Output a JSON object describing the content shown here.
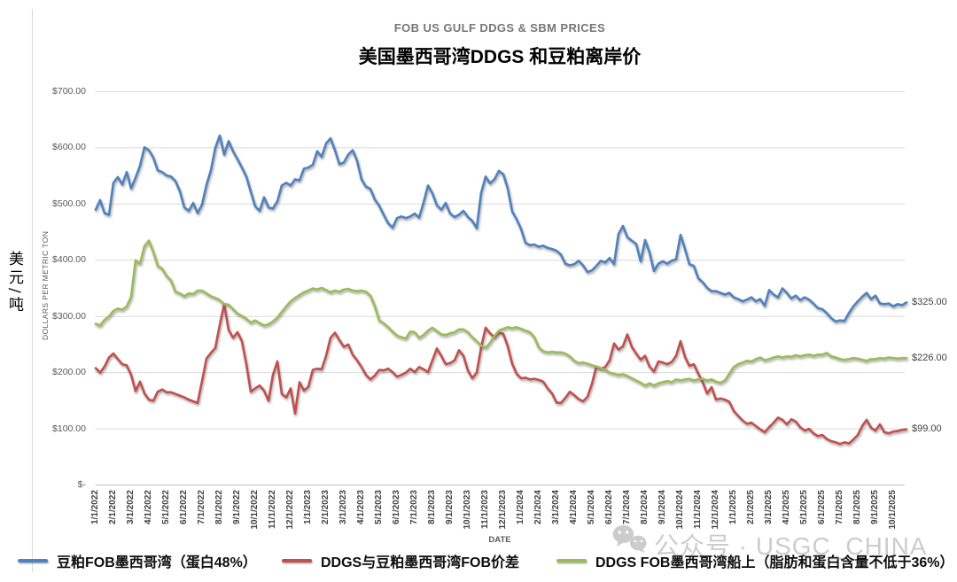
{
  "chart_data": {
    "type": "line",
    "title": "FOB US GULF DDGS & SBM PRICES",
    "subtitle": "美国墨西哥湾DDGS 和豆粕离岸价",
    "ylabel": "DOLLARS PER METRIC TON",
    "xlabel": "DATE",
    "unit_label": "美元/吨",
    "ylim": [
      0,
      700
    ],
    "ytick_labels": [
      "$700.00",
      "$600.00",
      "$500.00",
      "$400.00",
      "$300.00",
      "$200.00",
      "$100.00",
      "$-"
    ],
    "grid": true,
    "legend_position": "bottom",
    "x_tick_labels": [
      "1/1/2022",
      "2/1/2022",
      "3/1/2022",
      "4/1/2022",
      "5/1/2022",
      "6/1/2022",
      "7/1/2022",
      "8/1/2022",
      "9/1/2022",
      "10/1/2022",
      "11/1/2022",
      "12/1/2022",
      "1/1/2023",
      "2/1/2023",
      "3/1/2023",
      "4/1/2023",
      "5/1/2023",
      "6/1/2023",
      "7/1/2023",
      "8/1/2023",
      "9/1/2023",
      "10/1/2023",
      "11/1/2023",
      "12/1/2023",
      "1/1/2024",
      "2/1/2024",
      "3/1/2024",
      "4/1/2024",
      "5/1/2024",
      "6/1/2024",
      "7/1/2024",
      "8/1/2024",
      "9/1/2024",
      "10/1/2024",
      "11/1/2024",
      "12/1/2024",
      "1/1/2025",
      "2/1/2025",
      "3/1/2025",
      "4/1/2025",
      "5/1/2025",
      "6/1/2025",
      "7/1/2025",
      "8/1/2025",
      "9/1/2025",
      "10/1/2025"
    ],
    "points_per_month": 4,
    "series": [
      {
        "name": "豆粕FOB墨西哥湾（蛋白48%）",
        "color": "#4F81BD",
        "end_label": "$325.00",
        "values": [
          490,
          507,
          484,
          481,
          538,
          548,
          535,
          557,
          528,
          547,
          568,
          601,
          596,
          583,
          560,
          557,
          551,
          549,
          541,
          523,
          494,
          488,
          502,
          484,
          499,
          534,
          560,
          600,
          622,
          588,
          612,
          594,
          580,
          565,
          549,
          522,
          496,
          488,
          512,
          494,
          492,
          505,
          533,
          538,
          533,
          544,
          542,
          563,
          565,
          570,
          594,
          584,
          608,
          617,
          596,
          571,
          574,
          588,
          596,
          577,
          544,
          531,
          527,
          508,
          497,
          481,
          466,
          458,
          475,
          478,
          475,
          478,
          483,
          476,
          503,
          533,
          519,
          498,
          490,
          502,
          483,
          477,
          481,
          488,
          477,
          470,
          457,
          520,
          549,
          537,
          544,
          559,
          553,
          528,
          487,
          473,
          456,
          431,
          427,
          428,
          424,
          426,
          422,
          420,
          417,
          410,
          394,
          391,
          393,
          399,
          391,
          379,
          382,
          390,
          399,
          396,
          404,
          393,
          447,
          461,
          441,
          435,
          429,
          398,
          436,
          414,
          381,
          394,
          398,
          394,
          399,
          402,
          445,
          420,
          393,
          390,
          368,
          361,
          351,
          345,
          345,
          342,
          339,
          342,
          334,
          331,
          327,
          330,
          334,
          327,
          331,
          319,
          347,
          339,
          334,
          350,
          342,
          332,
          337,
          329,
          334,
          330,
          323,
          315,
          313,
          306,
          297,
          291,
          293,
          292,
          306,
          318,
          327,
          335,
          342,
          331,
          337,
          323,
          322,
          323,
          318,
          322,
          320,
          325
        ]
      },
      {
        "name": "DDGS与豆粕墨西哥湾FOB价差",
        "color": "#C0504D",
        "end_label": "$99.00",
        "values": [
          208,
          200,
          211,
          227,
          234,
          224,
          215,
          213,
          196,
          167,
          184,
          163,
          152,
          150,
          166,
          170,
          165,
          165,
          162,
          159,
          156,
          152,
          149,
          146,
          185,
          225,
          235,
          244,
          285,
          322,
          276,
          262,
          272,
          256,
          215,
          166,
          172,
          177,
          168,
          150,
          196,
          220,
          162,
          156,
          172,
          127,
          183,
          168,
          175,
          205,
          207,
          206,
          230,
          262,
          271,
          258,
          246,
          250,
          232,
          222,
          210,
          196,
          188,
          195,
          205,
          204,
          207,
          201,
          193,
          196,
          200,
          207,
          201,
          210,
          206,
          201,
          222,
          243,
          230,
          215,
          217,
          222,
          240,
          230,
          204,
          190,
          200,
          245,
          280,
          270,
          263,
          271,
          269,
          247,
          216,
          198,
          190,
          191,
          188,
          189,
          187,
          184,
          172,
          163,
          147,
          146,
          155,
          166,
          160,
          153,
          149,
          157,
          180,
          211,
          207,
          210,
          222,
          252,
          241,
          247,
          268,
          246,
          234,
          223,
          230,
          211,
          202,
          220,
          218,
          215,
          219,
          230,
          256,
          228,
          212,
          215,
          198,
          183,
          163,
          174,
          152,
          154,
          152,
          148,
          132,
          123,
          115,
          109,
          111,
          105,
          99,
          94,
          103,
          111,
          120,
          116,
          108,
          117,
          113,
          103,
          97,
          100,
          92,
          87,
          89,
          82,
          78,
          76,
          73,
          76,
          74,
          81,
          89,
          105,
          116,
          102,
          97,
          108,
          94,
          92,
          95,
          96,
          98,
          99
        ]
      },
      {
        "name": "DDGS FOB墨西哥湾船上（脂肪和蛋白含量不低于36%）",
        "color": "#9BBB59",
        "end_label": "$226.00",
        "values": [
          287,
          284,
          294,
          300,
          310,
          314,
          312,
          318,
          335,
          400,
          394,
          425,
          435,
          415,
          390,
          385,
          372,
          364,
          344,
          341,
          336,
          341,
          340,
          346,
          346,
          341,
          336,
          333,
          329,
          322,
          321,
          313,
          305,
          301,
          296,
          289,
          293,
          288,
          284,
          286,
          291,
          298,
          308,
          318,
          327,
          333,
          338,
          343,
          346,
          350,
          348,
          351,
          347,
          343,
          346,
          344,
          348,
          349,
          346,
          345,
          346,
          344,
          337,
          318,
          293,
          288,
          281,
          273,
          266,
          263,
          261,
          273,
          272,
          262,
          267,
          275,
          280,
          274,
          268,
          267,
          270,
          272,
          277,
          277,
          272,
          263,
          256,
          248,
          244,
          253,
          265,
          275,
          278,
          281,
          279,
          281,
          278,
          275,
          272,
          263,
          245,
          238,
          236,
          237,
          236,
          236,
          234,
          229,
          221,
          217,
          218,
          216,
          213,
          211,
          208,
          205,
          200,
          198,
          196,
          197,
          194,
          190,
          186,
          182,
          177,
          181,
          177,
          181,
          183,
          185,
          183,
          188,
          186,
          188,
          189,
          186,
          188,
          189,
          186,
          188,
          184,
          182,
          186,
          198,
          210,
          215,
          218,
          221,
          220,
          224,
          227,
          222,
          224,
          227,
          229,
          227,
          229,
          228,
          231,
          229,
          231,
          232,
          230,
          232,
          232,
          235,
          229,
          227,
          224,
          223,
          224,
          226,
          225,
          223,
          221,
          224,
          224,
          226,
          225,
          227,
          226,
          225,
          226,
          226
        ]
      }
    ],
    "watermark": "公众号 · USGC_CHINA"
  }
}
